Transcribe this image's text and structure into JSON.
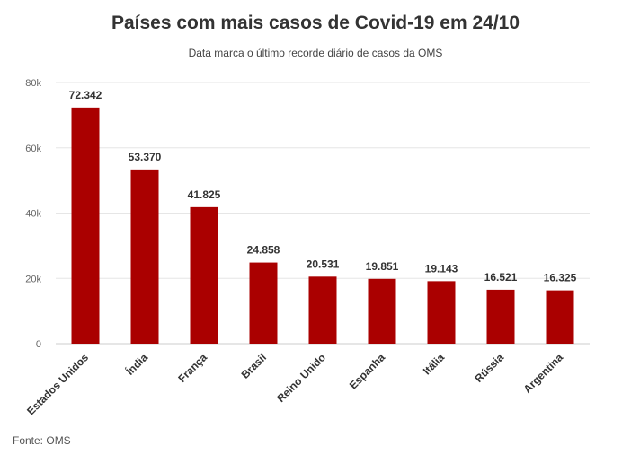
{
  "chart_data": {
    "type": "bar",
    "title": "Países com mais casos de Covid-19 em 24/10",
    "subtitle": "Data marca o último recorde diário de casos da OMS",
    "categories": [
      "Estados Unidos",
      "Índia",
      "França",
      "Brasil",
      "Reino Unido",
      "Espanha",
      "Itália",
      "Rússia",
      "Argentina"
    ],
    "values": [
      72342,
      53370,
      41825,
      24858,
      20531,
      19851,
      19143,
      16521,
      16325
    ],
    "data_labels": [
      "72.342",
      "53.370",
      "41.825",
      "24.858",
      "20.531",
      "19.851",
      "19.143",
      "16.521",
      "16.325"
    ],
    "ylim": [
      0,
      80000
    ],
    "yticks": [
      0,
      20000,
      40000,
      60000,
      80000
    ],
    "ytick_labels": [
      "0",
      "20k",
      "40k",
      "60k",
      "80k"
    ],
    "grid": true,
    "bar_color": "#aa0000",
    "source": "Fonte: OMS"
  }
}
